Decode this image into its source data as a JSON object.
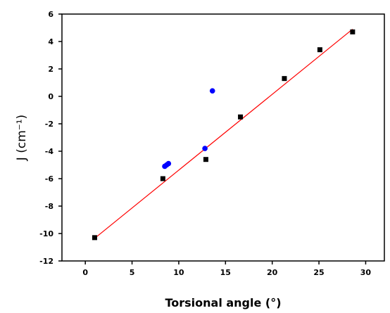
{
  "chart_data": {
    "type": "scatter",
    "xlabel": "Torsional angle (°)",
    "ylabel": "J (cm⁻¹)",
    "xlim": [
      -2.5,
      32
    ],
    "ylim": [
      -12,
      6
    ],
    "xticks": [
      0,
      5,
      10,
      15,
      20,
      25,
      30
    ],
    "yticks": [
      -12,
      -10,
      -8,
      -6,
      -4,
      -2,
      0,
      2,
      4,
      6
    ],
    "grid": false,
    "legend": "none",
    "series": [
      {
        "marker": "square",
        "color": "#000000",
        "x": [
          1.0,
          8.3,
          12.9,
          16.6,
          21.3,
          25.1,
          28.6
        ],
        "y": [
          -10.3,
          -6.0,
          -4.6,
          -1.5,
          1.3,
          3.4,
          4.7
        ]
      },
      {
        "marker": "circle",
        "color": "#0000ff",
        "x": [
          8.5,
          8.7,
          8.9,
          12.8,
          13.6
        ],
        "y": [
          -5.1,
          -5.0,
          -4.9,
          -3.8,
          0.4
        ]
      }
    ],
    "fit_line": {
      "color": "#ff0000",
      "x": [
        1.0,
        28.6
      ],
      "y": [
        -10.35,
        4.9
      ]
    }
  }
}
